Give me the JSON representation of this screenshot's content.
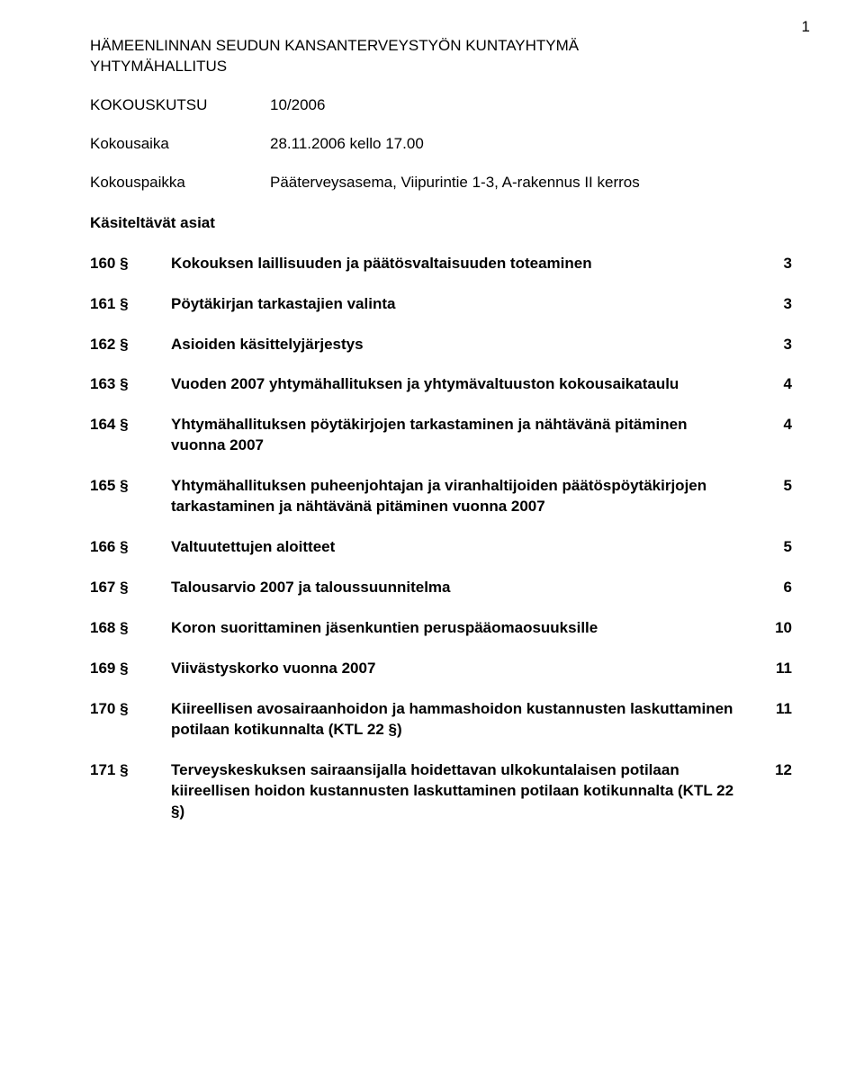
{
  "page_number": "1",
  "header": {
    "line1": "HÄMEENLINNAN SEUDUN KANSANTERVEYSTYÖN KUNTAYHTYMÄ",
    "line2": "YHTYMÄHALLITUS"
  },
  "meta": {
    "kokouskutsu_label": "KOKOUSKUTSU",
    "kokouskutsu_value": "10/2006",
    "kokousaika_label": "Kokousaika",
    "kokousaika_value": "28.11.2006 kello 17.00",
    "kokouspaikka_label": "Kokouspaikka",
    "kokouspaikka_value": "Pääterveysasema, Viipurintie 1-3, A-rakennus II kerros",
    "asiat_label": "Käsiteltävät asiat"
  },
  "toc": [
    {
      "num": "160 §",
      "title": "Kokouksen laillisuuden ja päätösvaltaisuuden toteaminen",
      "page": "3"
    },
    {
      "num": "161 §",
      "title": "Pöytäkirjan tarkastajien valinta",
      "page": "3"
    },
    {
      "num": "162 §",
      "title": "Asioiden käsittelyjärjestys",
      "page": "3"
    },
    {
      "num": "163 §",
      "title": "Vuoden 2007 yhtymähallituksen ja yhtymävaltuuston kokousaikataulu",
      "page": "4"
    },
    {
      "num": "164 §",
      "title": "Yhtymähallituksen pöytäkirjojen tarkastaminen ja nähtävänä pitäminen vuonna 2007",
      "page": "4"
    },
    {
      "num": "165 §",
      "title": "Yhtymähallituksen puheenjohtajan ja viranhaltijoiden päätöspöytäkirjojen tarkastaminen ja nähtävänä pitäminen vuonna 2007",
      "page": "5"
    },
    {
      "num": "166 §",
      "title": "Valtuutettujen aloitteet",
      "page": "5"
    },
    {
      "num": "167 §",
      "title": "Talousarvio 2007 ja taloussuunnitelma",
      "page": "6"
    },
    {
      "num": "168 §",
      "title": "Koron suorittaminen jäsenkuntien peruspääomaosuuksille",
      "page": "10"
    },
    {
      "num": "169 §",
      "title": "Viivästyskorko vuonna 2007",
      "page": "11"
    },
    {
      "num": "170 §",
      "title": "Kiireellisen avosairaanhoidon ja hammashoidon kustannusten laskuttaminen potilaan kotikunnalta (KTL 22 §)",
      "page": "11"
    },
    {
      "num": "171 §",
      "title": "Terveyskeskuksen sairaansijalla hoidettavan ulko­kuntalaisen potilaan kiireellisen hoidon kustannusten laskuttaminen potilaan kotikunnalta (KTL 22 §)",
      "page": "12"
    }
  ]
}
